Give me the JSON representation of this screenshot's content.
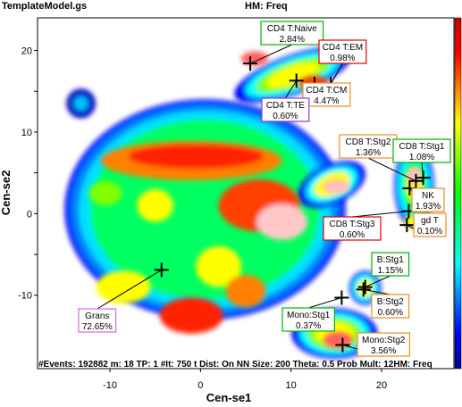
{
  "header": {
    "file_name": "TemplateModel.gs",
    "map_title": "HM: Freq"
  },
  "footer": {
    "stats": "#Events: 192882 m: 18 TP: 1 #It: 750 t Dist: On NN Size: 200 Theta: 0.5 Prob Mult: 12HM: Freq"
  },
  "colors": {
    "colorbar": [
      "#00008b",
      "#0000ff",
      "#0080ff",
      "#00ffff",
      "#00ff80",
      "#00ff00",
      "#80ff00",
      "#ffff00",
      "#ff8000",
      "#ff0000",
      "#d00000"
    ],
    "border_green": "#00b400",
    "border_red": "#e00000",
    "border_orange": "#f08c1e",
    "border_purple": "#8a3ac8",
    "border_pink": "#e060e0"
  },
  "chart_data": {
    "type": "scatter",
    "subtype": "tSNE density heat map",
    "xlabel": "Cen-se1",
    "ylabel": "Cen-se2",
    "xlim": [
      -18,
      28
    ],
    "ylim": [
      -19,
      24
    ],
    "xticks": [
      -10,
      0,
      10,
      20
    ],
    "yticks": [
      -10,
      -5,
      0,
      5,
      10,
      15,
      20
    ],
    "ytick_labels": [
      "-10",
      "",
      "0",
      "",
      "10",
      "",
      "20"
    ],
    "grid": false,
    "legend": "colorbar-right",
    "populations": [
      {
        "name": "CD4 T:Naive",
        "pct": "2.84%",
        "x": 5.5,
        "y": 18.4,
        "border": "green"
      },
      {
        "name": "CD4 T:EM",
        "pct": "0.98%",
        "x": 14.4,
        "y": 15.9,
        "border": "red"
      },
      {
        "name": "CD4 T:CM",
        "pct": "4.47%",
        "x": 12.6,
        "y": 15.9,
        "border": "orange"
      },
      {
        "name": "CD4 T:TE",
        "pct": "0.60%",
        "x": 10.6,
        "y": 16.3,
        "border": "purple"
      },
      {
        "name": "CD8 T:Stg2",
        "pct": "1.36%",
        "x": 23.8,
        "y": 4.0,
        "border": "orange"
      },
      {
        "name": "CD8 T:Stg1",
        "pct": "1.08%",
        "x": 24.6,
        "y": 4.4,
        "border": "green"
      },
      {
        "name": "NK",
        "pct": "1.93%",
        "x": 23.1,
        "y": 3.1,
        "border": "orange"
      },
      {
        "name": "CD8 T:Stg3",
        "pct": "0.60%",
        "x": 23.0,
        "y": 0.3,
        "border": "red"
      },
      {
        "name": "gd T",
        "pct": "0.10%",
        "x": 22.8,
        "y": -1.4,
        "border": "orange"
      },
      {
        "name": "B:Stg1",
        "pct": "1.15%",
        "x": 18.2,
        "y": -9.0,
        "border": "green"
      },
      {
        "name": "B:Stg2",
        "pct": "0.60%",
        "x": 18.0,
        "y": -9.3,
        "border": "orange"
      },
      {
        "name": "Mono:Stg1",
        "pct": "0.37%",
        "x": 15.6,
        "y": -10.3,
        "border": "green"
      },
      {
        "name": "Mono:Stg2",
        "pct": "3.56%",
        "x": 15.7,
        "y": -16.1,
        "border": "orange"
      },
      {
        "name": "Grans",
        "pct": "72.65%",
        "x": -4.3,
        "y": -6.9,
        "border": "pink"
      }
    ]
  }
}
